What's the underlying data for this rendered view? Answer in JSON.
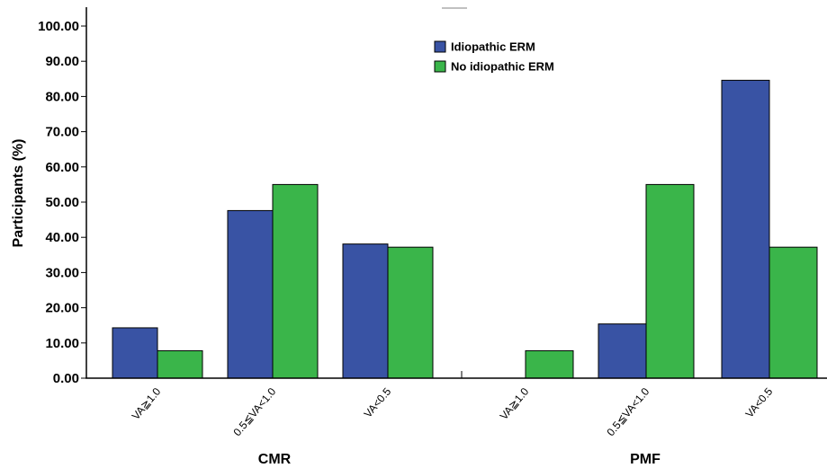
{
  "chart_data": {
    "type": "bar",
    "ylabel": "Participants (%)",
    "ylim": [
      0,
      100
    ],
    "yticks": [
      "0.00",
      "10.00",
      "20.00",
      "30.00",
      "40.00",
      "50.00",
      "60.00",
      "70.00",
      "80.00",
      "90.00",
      "100.00"
    ],
    "grid": false,
    "legend_position": "top-center",
    "series": [
      {
        "name": "Idiopathic ERM",
        "color": "#3953a4"
      },
      {
        "name": "No idiopathic ERM",
        "color": "#3ab54a"
      }
    ],
    "panels": [
      {
        "label": "CMR",
        "categories": [
          "VA≧1.0",
          "0.5≦VA<1.0",
          "VA<0.5"
        ],
        "series_values": [
          [
            14.3,
            47.6,
            38.1
          ],
          [
            7.8,
            55.0,
            37.2
          ]
        ]
      },
      {
        "label": "PMF",
        "categories": [
          "VA≧1.0",
          "0.5≦VA<1.0",
          "VA<0.5"
        ],
        "series_values": [
          [
            0.0,
            15.4,
            84.6
          ],
          [
            7.8,
            55.0,
            37.2
          ]
        ]
      }
    ]
  }
}
